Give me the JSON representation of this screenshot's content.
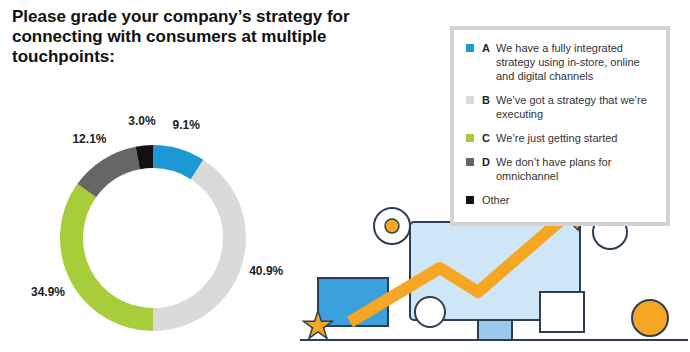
{
  "chart_data": {
    "type": "donut",
    "title": "Please grade your company’s strategy for connecting with consumers at multiple touchpoints:",
    "codes": [
      "A",
      "B",
      "C",
      "D",
      null
    ],
    "categories": [
      "We have a fully integrated strategy using in-store, online and digital channels",
      "We’ve got a strategy that we’re executing",
      "We’re just getting started",
      "We don’t have plans for omnichannel",
      "Other"
    ],
    "values": [
      9.1,
      40.9,
      34.9,
      12.1,
      3.0
    ],
    "value_labels": [
      "9.1%",
      "40.9%",
      "34.9%",
      "12.1%",
      "3.0%"
    ],
    "colors": [
      "#1b98d5",
      "#dadada",
      "#a8cd3a",
      "#666666",
      "#111111"
    ],
    "data_labels": true,
    "legend": "right"
  }
}
